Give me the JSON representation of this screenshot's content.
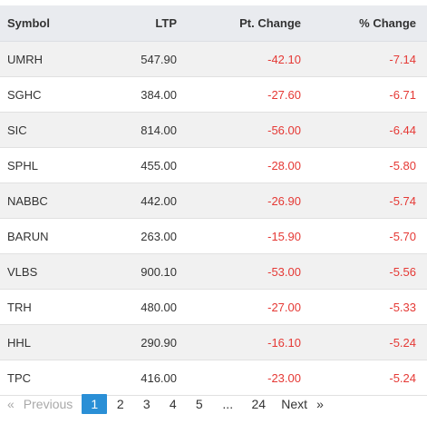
{
  "table": {
    "headers": {
      "symbol": "Symbol",
      "ltp": "LTP",
      "pt_change": "Pt. Change",
      "pct_change": "% Change"
    },
    "rows": [
      {
        "symbol": "UMRH",
        "ltp": "547.90",
        "pt_change": "-42.10",
        "pct_change": "-7.14"
      },
      {
        "symbol": "SGHC",
        "ltp": "384.00",
        "pt_change": "-27.60",
        "pct_change": "-6.71"
      },
      {
        "symbol": "SIC",
        "ltp": "814.00",
        "pt_change": "-56.00",
        "pct_change": "-6.44"
      },
      {
        "symbol": "SPHL",
        "ltp": "455.00",
        "pt_change": "-28.00",
        "pct_change": "-5.80"
      },
      {
        "symbol": "NABBC",
        "ltp": "442.00",
        "pt_change": "-26.90",
        "pct_change": "-5.74"
      },
      {
        "symbol": "BARUN",
        "ltp": "263.00",
        "pt_change": "-15.90",
        "pct_change": "-5.70"
      },
      {
        "symbol": "VLBS",
        "ltp": "900.10",
        "pt_change": "-53.00",
        "pct_change": "-5.56"
      },
      {
        "symbol": "TRH",
        "ltp": "480.00",
        "pt_change": "-27.00",
        "pct_change": "-5.33"
      },
      {
        "symbol": "HHL",
        "ltp": "290.90",
        "pt_change": "-16.10",
        "pct_change": "-5.24"
      },
      {
        "symbol": "TPC",
        "ltp": "416.00",
        "pt_change": "-23.00",
        "pct_change": "-5.24"
      }
    ]
  },
  "pagination": {
    "prev_arrow": "«",
    "prev_label": "Previous",
    "pages": [
      "1",
      "2",
      "3",
      "4",
      "5"
    ],
    "ellipsis": "...",
    "last_page": "24",
    "next_label": "Next",
    "next_arrow": "»",
    "current_page": "1"
  },
  "colors": {
    "negative": "#e53935",
    "active_page": "#2a8fd6",
    "header_bg": "#e9ebef",
    "stripe_bg": "#f1f1f1"
  }
}
